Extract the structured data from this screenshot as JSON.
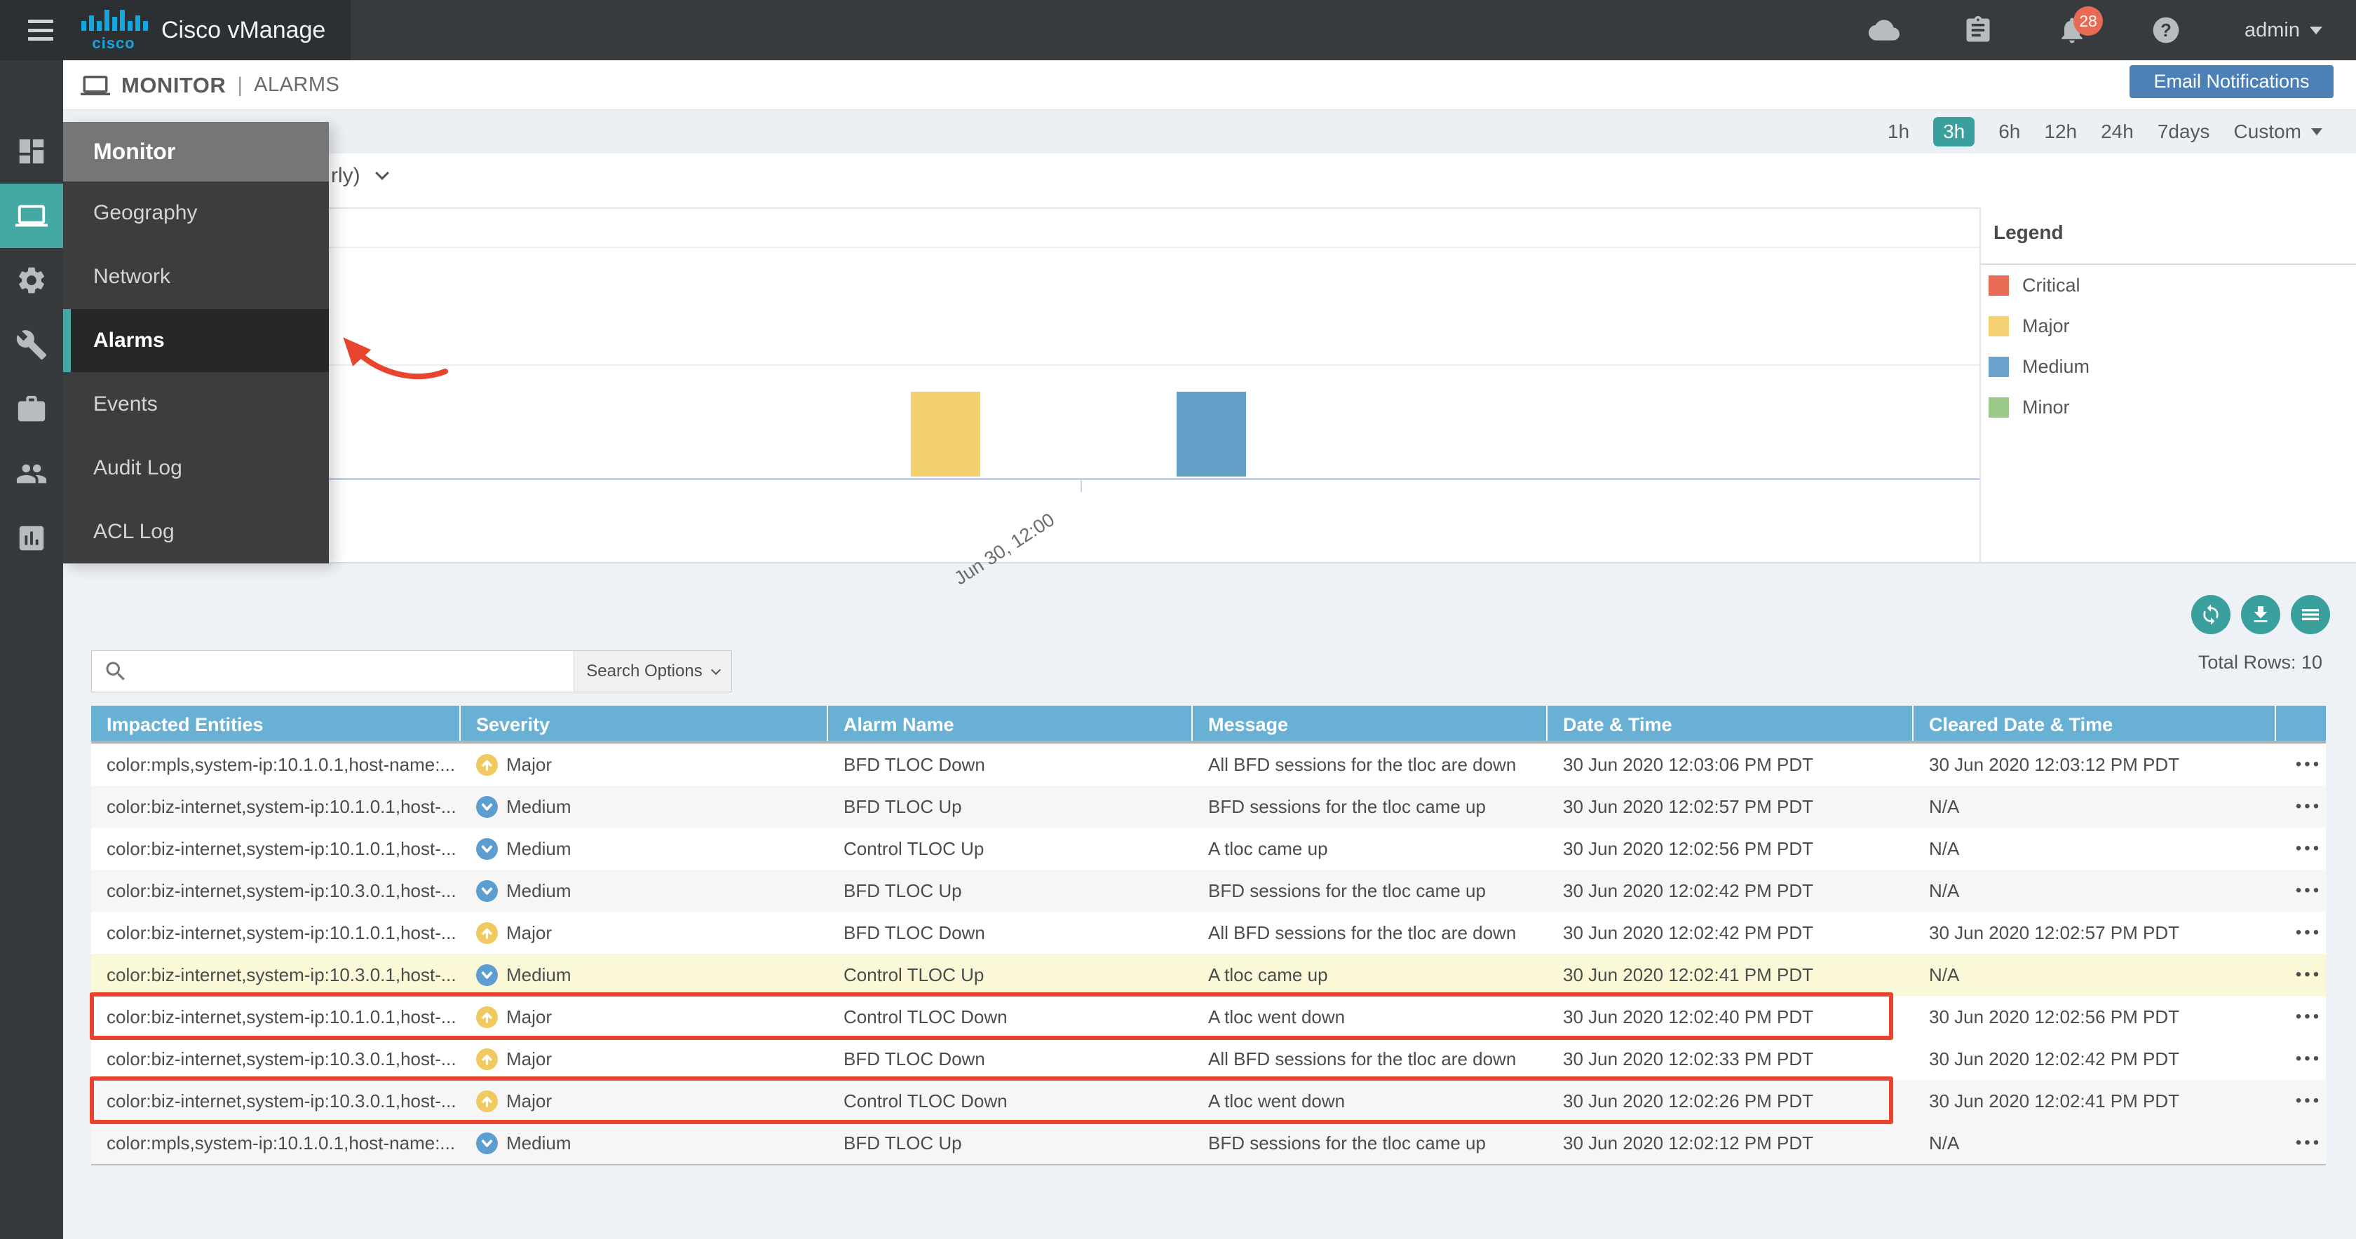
{
  "topbar": {
    "brand": "Cisco vManage",
    "logo_text": "cisco",
    "icons": [
      "cloud",
      "tasks-clipboard",
      "notifications-bell",
      "help"
    ],
    "notification_badge": "28",
    "user_menu": "admin"
  },
  "breadcrumb": {
    "section": "MONITOR",
    "separator": "|",
    "page": "ALARMS"
  },
  "email_notifications_button": "Email Notifications",
  "time_range": {
    "options": [
      "1h",
      "3h",
      "6h",
      "12h",
      "24h",
      "7days"
    ],
    "selected": "3h",
    "custom": "Custom"
  },
  "sidebar": {
    "icons": [
      "dashboard",
      "monitor",
      "configuration-gear",
      "tools-wrench",
      "maintenance-briefcase",
      "administration-users",
      "analytics-chart"
    ],
    "active_icon": "monitor",
    "flyout": {
      "header": "Monitor",
      "items": [
        "Geography",
        "Network",
        "Alarms",
        "Events",
        "Audit Log",
        "ACL Log"
      ],
      "active_item": "Alarms"
    }
  },
  "chart": {
    "title_visible_fragment": "rly)",
    "chart_data": {
      "type": "bar",
      "x_tick_labels": [
        "Jun 30, 12:00"
      ],
      "series": [
        {
          "name": "Major",
          "color": "#f3d06d",
          "values": [
            1
          ]
        },
        {
          "name": "Medium",
          "color": "#639fc7",
          "values": [
            1
          ]
        }
      ],
      "ylim": [
        0,
        4
      ],
      "grid": "horizontal",
      "legend_position": "right",
      "legend": {
        "title": "Legend",
        "items": [
          {
            "label": "Critical",
            "color": "#e96a55"
          },
          {
            "label": "Major",
            "color": "#f5d173"
          },
          {
            "label": "Medium",
            "color": "#6ca3ce"
          },
          {
            "label": "Minor",
            "color": "#9bc989"
          }
        ]
      }
    }
  },
  "annotations": {
    "red_arrow_color": "#e8442e",
    "red_box_color": "#e8432e"
  },
  "table_tools": {
    "buttons": [
      "refresh",
      "download",
      "menu"
    ],
    "total_rows": "Total Rows: 10"
  },
  "search": {
    "value": "",
    "placeholder": "",
    "options_label": "Search Options"
  },
  "table": {
    "headers": [
      "Impacted Entities",
      "Severity",
      "Alarm Name",
      "Message",
      "Date & Time",
      "Cleared Date & Time"
    ],
    "row_action_icon": "•••",
    "severity_icons": {
      "Major": "arrow-up-circle-yellow",
      "Medium": "chevron-down-circle-blue"
    },
    "rows": [
      {
        "entities": "color:mpls,system-ip:10.1.0.1,host-name:...",
        "severity": "Major",
        "level": "major",
        "alarm": "BFD TLOC Down",
        "message": "All BFD sessions for the tloc are down",
        "date": "30 Jun 2020 12:03:06 PM PDT",
        "cleared": "30 Jun 2020 12:03:12 PM PDT",
        "row_highlight": "none"
      },
      {
        "entities": "color:biz-internet,system-ip:10.1.0.1,host-...",
        "severity": "Medium",
        "level": "medium",
        "alarm": "BFD TLOC Up",
        "message": "BFD sessions for the tloc came up",
        "date": "30 Jun 2020 12:02:57 PM PDT",
        "cleared": "N/A",
        "row_highlight": "none"
      },
      {
        "entities": "color:biz-internet,system-ip:10.1.0.1,host-...",
        "severity": "Medium",
        "level": "medium",
        "alarm": "Control TLOC Up",
        "message": "A tloc came up",
        "date": "30 Jun 2020 12:02:56 PM PDT",
        "cleared": "N/A",
        "row_highlight": "none"
      },
      {
        "entities": "color:biz-internet,system-ip:10.3.0.1,host-...",
        "severity": "Medium",
        "level": "medium",
        "alarm": "BFD TLOC Up",
        "message": "BFD sessions for the tloc came up",
        "date": "30 Jun 2020 12:02:42 PM PDT",
        "cleared": "N/A",
        "row_highlight": "none"
      },
      {
        "entities": "color:biz-internet,system-ip:10.1.0.1,host-...",
        "severity": "Major",
        "level": "major",
        "alarm": "BFD TLOC Down",
        "message": "All BFD sessions for the tloc are down",
        "date": "30 Jun 2020 12:02:42 PM PDT",
        "cleared": "30 Jun 2020 12:02:57 PM PDT",
        "row_highlight": "none"
      },
      {
        "entities": "color:biz-internet,system-ip:10.3.0.1,host-...",
        "severity": "Medium",
        "level": "medium",
        "alarm": "Control TLOC Up",
        "message": "A tloc came up",
        "date": "30 Jun 2020 12:02:41 PM PDT",
        "cleared": "N/A",
        "row_highlight": "yellow"
      },
      {
        "entities": "color:biz-internet,system-ip:10.1.0.1,host-...",
        "severity": "Major",
        "level": "major",
        "alarm": "Control TLOC Down",
        "message": "A tloc went down",
        "date": "30 Jun 2020 12:02:40 PM PDT",
        "cleared": "30 Jun 2020 12:02:56 PM PDT",
        "row_highlight": "red-box"
      },
      {
        "entities": "color:biz-internet,system-ip:10.3.0.1,host-...",
        "severity": "Major",
        "level": "major",
        "alarm": "BFD TLOC Down",
        "message": "All BFD sessions for the tloc are down",
        "date": "30 Jun 2020 12:02:33 PM PDT",
        "cleared": "30 Jun 2020 12:02:42 PM PDT",
        "row_highlight": "none"
      },
      {
        "entities": "color:biz-internet,system-ip:10.3.0.1,host-...",
        "severity": "Major",
        "level": "major",
        "alarm": "Control TLOC Down",
        "message": "A tloc went down",
        "date": "30 Jun 2020 12:02:26 PM PDT",
        "cleared": "30 Jun 2020 12:02:41 PM PDT",
        "row_highlight": "red-box"
      },
      {
        "entities": "color:mpls,system-ip:10.1.0.1,host-name:...",
        "severity": "Medium",
        "level": "medium",
        "alarm": "BFD TLOC Up",
        "message": "BFD sessions for the tloc came up",
        "date": "30 Jun 2020 12:02:12 PM PDT",
        "cleared": "N/A",
        "row_highlight": "none"
      }
    ]
  },
  "colors": {
    "teal_accent": "#3aa09d",
    "table_header_blue": "#69b1d4",
    "severity_major": "#f0ca60",
    "severity_medium": "#5b9ecf",
    "row_highlight_yellow": "#fbf8d8",
    "email_button_blue": "#4d80b7",
    "badge_red": "#e96a54",
    "cisco_logo_blue": "#15a6dd"
  }
}
